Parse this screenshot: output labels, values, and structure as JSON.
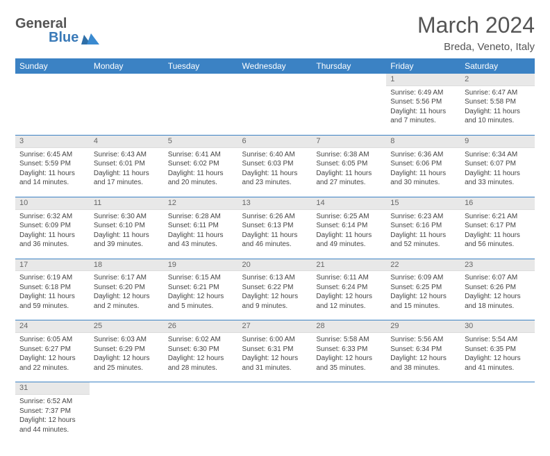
{
  "logo": {
    "text_general": "General",
    "text_blue": "Blue"
  },
  "title": "March 2024",
  "location": "Breda, Veneto, Italy",
  "colors": {
    "header_bg": "#3b82c4",
    "header_text": "#ffffff",
    "daynum_bg": "#e8e8e8",
    "daynum_text": "#666666",
    "row_border": "#3b82c4",
    "body_text": "#444444",
    "title_text": "#555555",
    "logo_blue": "#3a7ab8"
  },
  "typography": {
    "title_fontsize": 32,
    "location_fontsize": 15,
    "weekday_fontsize": 12,
    "daynum_fontsize": 11,
    "cell_fontsize": 10
  },
  "weekdays": [
    "Sunday",
    "Monday",
    "Tuesday",
    "Wednesday",
    "Thursday",
    "Friday",
    "Saturday"
  ],
  "weeks": [
    [
      null,
      null,
      null,
      null,
      null,
      {
        "day": "1",
        "sunrise": "Sunrise: 6:49 AM",
        "sunset": "Sunset: 5:56 PM",
        "daylight": "Daylight: 11 hours and 7 minutes."
      },
      {
        "day": "2",
        "sunrise": "Sunrise: 6:47 AM",
        "sunset": "Sunset: 5:58 PM",
        "daylight": "Daylight: 11 hours and 10 minutes."
      }
    ],
    [
      {
        "day": "3",
        "sunrise": "Sunrise: 6:45 AM",
        "sunset": "Sunset: 5:59 PM",
        "daylight": "Daylight: 11 hours and 14 minutes."
      },
      {
        "day": "4",
        "sunrise": "Sunrise: 6:43 AM",
        "sunset": "Sunset: 6:01 PM",
        "daylight": "Daylight: 11 hours and 17 minutes."
      },
      {
        "day": "5",
        "sunrise": "Sunrise: 6:41 AM",
        "sunset": "Sunset: 6:02 PM",
        "daylight": "Daylight: 11 hours and 20 minutes."
      },
      {
        "day": "6",
        "sunrise": "Sunrise: 6:40 AM",
        "sunset": "Sunset: 6:03 PM",
        "daylight": "Daylight: 11 hours and 23 minutes."
      },
      {
        "day": "7",
        "sunrise": "Sunrise: 6:38 AM",
        "sunset": "Sunset: 6:05 PM",
        "daylight": "Daylight: 11 hours and 27 minutes."
      },
      {
        "day": "8",
        "sunrise": "Sunrise: 6:36 AM",
        "sunset": "Sunset: 6:06 PM",
        "daylight": "Daylight: 11 hours and 30 minutes."
      },
      {
        "day": "9",
        "sunrise": "Sunrise: 6:34 AM",
        "sunset": "Sunset: 6:07 PM",
        "daylight": "Daylight: 11 hours and 33 minutes."
      }
    ],
    [
      {
        "day": "10",
        "sunrise": "Sunrise: 6:32 AM",
        "sunset": "Sunset: 6:09 PM",
        "daylight": "Daylight: 11 hours and 36 minutes."
      },
      {
        "day": "11",
        "sunrise": "Sunrise: 6:30 AM",
        "sunset": "Sunset: 6:10 PM",
        "daylight": "Daylight: 11 hours and 39 minutes."
      },
      {
        "day": "12",
        "sunrise": "Sunrise: 6:28 AM",
        "sunset": "Sunset: 6:11 PM",
        "daylight": "Daylight: 11 hours and 43 minutes."
      },
      {
        "day": "13",
        "sunrise": "Sunrise: 6:26 AM",
        "sunset": "Sunset: 6:13 PM",
        "daylight": "Daylight: 11 hours and 46 minutes."
      },
      {
        "day": "14",
        "sunrise": "Sunrise: 6:25 AM",
        "sunset": "Sunset: 6:14 PM",
        "daylight": "Daylight: 11 hours and 49 minutes."
      },
      {
        "day": "15",
        "sunrise": "Sunrise: 6:23 AM",
        "sunset": "Sunset: 6:16 PM",
        "daylight": "Daylight: 11 hours and 52 minutes."
      },
      {
        "day": "16",
        "sunrise": "Sunrise: 6:21 AM",
        "sunset": "Sunset: 6:17 PM",
        "daylight": "Daylight: 11 hours and 56 minutes."
      }
    ],
    [
      {
        "day": "17",
        "sunrise": "Sunrise: 6:19 AM",
        "sunset": "Sunset: 6:18 PM",
        "daylight": "Daylight: 11 hours and 59 minutes."
      },
      {
        "day": "18",
        "sunrise": "Sunrise: 6:17 AM",
        "sunset": "Sunset: 6:20 PM",
        "daylight": "Daylight: 12 hours and 2 minutes."
      },
      {
        "day": "19",
        "sunrise": "Sunrise: 6:15 AM",
        "sunset": "Sunset: 6:21 PM",
        "daylight": "Daylight: 12 hours and 5 minutes."
      },
      {
        "day": "20",
        "sunrise": "Sunrise: 6:13 AM",
        "sunset": "Sunset: 6:22 PM",
        "daylight": "Daylight: 12 hours and 9 minutes."
      },
      {
        "day": "21",
        "sunrise": "Sunrise: 6:11 AM",
        "sunset": "Sunset: 6:24 PM",
        "daylight": "Daylight: 12 hours and 12 minutes."
      },
      {
        "day": "22",
        "sunrise": "Sunrise: 6:09 AM",
        "sunset": "Sunset: 6:25 PM",
        "daylight": "Daylight: 12 hours and 15 minutes."
      },
      {
        "day": "23",
        "sunrise": "Sunrise: 6:07 AM",
        "sunset": "Sunset: 6:26 PM",
        "daylight": "Daylight: 12 hours and 18 minutes."
      }
    ],
    [
      {
        "day": "24",
        "sunrise": "Sunrise: 6:05 AM",
        "sunset": "Sunset: 6:27 PM",
        "daylight": "Daylight: 12 hours and 22 minutes."
      },
      {
        "day": "25",
        "sunrise": "Sunrise: 6:03 AM",
        "sunset": "Sunset: 6:29 PM",
        "daylight": "Daylight: 12 hours and 25 minutes."
      },
      {
        "day": "26",
        "sunrise": "Sunrise: 6:02 AM",
        "sunset": "Sunset: 6:30 PM",
        "daylight": "Daylight: 12 hours and 28 minutes."
      },
      {
        "day": "27",
        "sunrise": "Sunrise: 6:00 AM",
        "sunset": "Sunset: 6:31 PM",
        "daylight": "Daylight: 12 hours and 31 minutes."
      },
      {
        "day": "28",
        "sunrise": "Sunrise: 5:58 AM",
        "sunset": "Sunset: 6:33 PM",
        "daylight": "Daylight: 12 hours and 35 minutes."
      },
      {
        "day": "29",
        "sunrise": "Sunrise: 5:56 AM",
        "sunset": "Sunset: 6:34 PM",
        "daylight": "Daylight: 12 hours and 38 minutes."
      },
      {
        "day": "30",
        "sunrise": "Sunrise: 5:54 AM",
        "sunset": "Sunset: 6:35 PM",
        "daylight": "Daylight: 12 hours and 41 minutes."
      }
    ],
    [
      {
        "day": "31",
        "sunrise": "Sunrise: 6:52 AM",
        "sunset": "Sunset: 7:37 PM",
        "daylight": "Daylight: 12 hours and 44 minutes."
      },
      null,
      null,
      null,
      null,
      null,
      null
    ]
  ]
}
